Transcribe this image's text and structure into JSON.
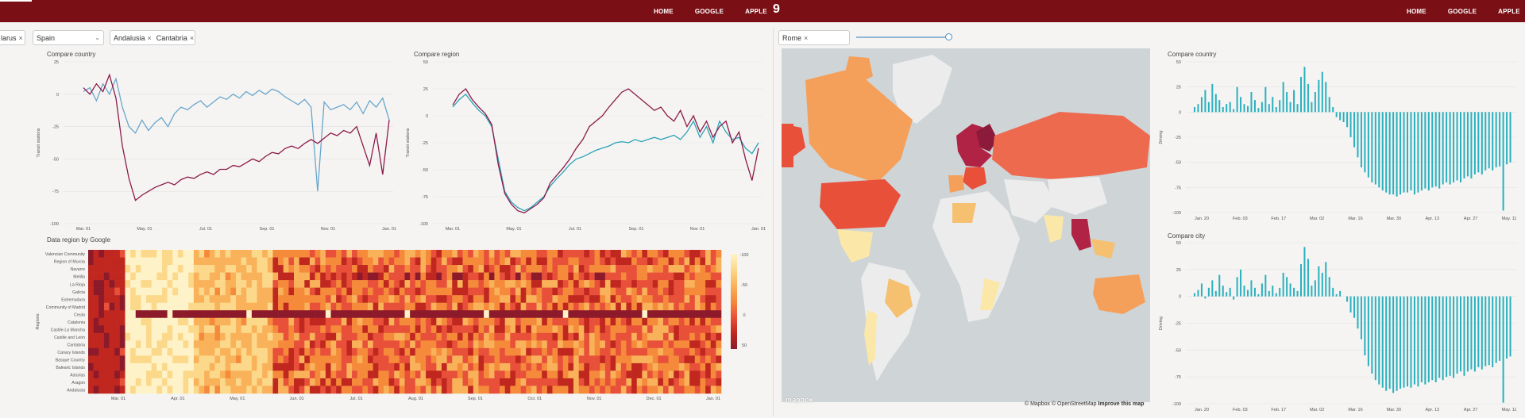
{
  "header": {
    "nav_left": [
      "HOME",
      "GOOGLE",
      "APPLE"
    ],
    "logo": "9",
    "nav_right": [
      "HOME",
      "GOOGLE",
      "APPLE"
    ]
  },
  "filters_left": {
    "country_chip": "larus",
    "country_select": "Spain",
    "region_chips": [
      "Andalusia",
      "Cantabria"
    ]
  },
  "filters_right": {
    "city_chip": "Rome"
  },
  "map": {
    "attribution_prefix": "© Mapbox © OpenStreetMap",
    "attribution_link": "Improve this map",
    "logo_text": "mapbox",
    "colors": {
      "ocean": "#cfd4d6",
      "high": "#8c1a3a",
      "mid": "#e8503a",
      "low": "#f5a05a",
      "faint": "#fbe8a8",
      "none": "#e8e8e8"
    }
  },
  "colors": {
    "series_a": "#6aa6cc",
    "series_b": "#8c1a4a",
    "series_c": "#2aa3b8",
    "bars": "#2ab0bf"
  },
  "chart_data": [
    {
      "id": "compare-country-left",
      "type": "line",
      "title": "Compare country",
      "ylabel": "Transit stations",
      "ylim": [
        -100,
        25
      ],
      "yticks": [
        25,
        0,
        -25,
        -50,
        -75,
        -100
      ],
      "xticks": [
        "Mar. 01",
        "May. 01",
        "Jul. 01",
        "Sep. 01",
        "Nov. 01",
        "Jan. 01"
      ],
      "series": [
        {
          "values": [
            2,
            5,
            -5,
            8,
            0,
            12,
            -10,
            -25,
            -30,
            -20,
            -28,
            -22,
            -18,
            -25,
            -15,
            -10,
            -12,
            -8,
            -5,
            -10,
            -6,
            -2,
            -4,
            0,
            -3,
            2,
            -1,
            3,
            0,
            4,
            2,
            -2,
            -5,
            -8,
            -4,
            -10,
            -75,
            -6,
            -12,
            -10,
            -8,
            -12,
            -6,
            -15,
            -5,
            -10,
            -3,
            -20
          ]
        },
        {
          "values": [
            5,
            0,
            8,
            2,
            15,
            -3,
            -40,
            -65,
            -82,
            -78,
            -75,
            -72,
            -70,
            -68,
            -70,
            -66,
            -64,
            -65,
            -62,
            -60,
            -62,
            -58,
            -58,
            -55,
            -56,
            -53,
            -50,
            -52,
            -48,
            -45,
            -46,
            -42,
            -40,
            -42,
            -38,
            -35,
            -38,
            -34,
            -30,
            -32,
            -28,
            -30,
            -25,
            -40,
            -55,
            -30,
            -62,
            -20
          ]
        }
      ]
    },
    {
      "id": "compare-region",
      "type": "line",
      "title": "Compare region",
      "ylabel": "Transit stations",
      "ylim": [
        -100,
        50
      ],
      "yticks": [
        50,
        25,
        0,
        -25,
        -50,
        -75,
        -100
      ],
      "xticks": [
        "Mar. 01",
        "May. 01",
        "Jul. 01",
        "Sep. 01",
        "Nov. 01",
        "Jan. 01"
      ],
      "series": [
        {
          "values": [
            8,
            15,
            20,
            12,
            5,
            0,
            -10,
            -40,
            -70,
            -80,
            -85,
            -88,
            -85,
            -80,
            -75,
            -65,
            -58,
            -52,
            -45,
            -40,
            -38,
            -35,
            -32,
            -30,
            -28,
            -25,
            -24,
            -25,
            -22,
            -24,
            -22,
            -20,
            -22,
            -20,
            -18,
            -22,
            -15,
            -5,
            -20,
            -10,
            -25,
            -5,
            -15,
            -22,
            -20,
            -30,
            -35,
            -25
          ]
        },
        {
          "values": [
            10,
            20,
            25,
            15,
            8,
            2,
            -8,
            -45,
            -72,
            -82,
            -88,
            -90,
            -86,
            -82,
            -76,
            -62,
            -55,
            -48,
            -40,
            -30,
            -22,
            -10,
            -5,
            0,
            8,
            15,
            22,
            25,
            20,
            15,
            10,
            5,
            8,
            0,
            -5,
            5,
            -10,
            0,
            -15,
            -5,
            -20,
            -10,
            -5,
            -25,
            -15,
            -40,
            -60,
            -30
          ]
        }
      ]
    },
    {
      "id": "data-region-heatmap",
      "type": "heatmap",
      "title": "Data region by Google",
      "ylabel": "Regions",
      "rows": [
        "Valencian Community",
        "Region of Murcia",
        "Navarre",
        "Melilla",
        "La Rioja",
        "Galicia",
        "Extremadura",
        "Community of Madrid",
        "Ceuta",
        "Catalonia",
        "Castile-La Mancha",
        "Castile and León",
        "Cantabria",
        "Canary Islands",
        "Basque Country",
        "Balearic Islands",
        "Asturias",
        "Aragon",
        "Andalusia"
      ],
      "xticks": [
        "Mar. 01",
        "Apr. 01",
        "May. 01",
        "Jun. 01",
        "Jul. 01",
        "Aug. 01",
        "Sep. 01",
        "Oct. 01",
        "Nov. 01",
        "Dec. 01",
        "Jan. 01"
      ],
      "scale_ticks": [
        "-100",
        "-50",
        "0",
        "50"
      ]
    },
    {
      "id": "compare-country-right",
      "type": "bar",
      "title": "Compare country",
      "ylabel": "Driving",
      "ylim": [
        -100,
        50
      ],
      "yticks": [
        50,
        25,
        0,
        -25,
        -50,
        -75,
        -100
      ],
      "xticks": [
        "Jan. 20",
        "Feb. 03",
        "Feb. 17",
        "Mar. 02",
        "Mar. 16",
        "Mar. 30",
        "Apr. 13",
        "Apr. 27",
        "May. 11"
      ],
      "values": [
        5,
        8,
        15,
        22,
        10,
        28,
        18,
        12,
        5,
        8,
        10,
        3,
        25,
        15,
        8,
        6,
        20,
        12,
        4,
        10,
        25,
        8,
        15,
        5,
        12,
        30,
        20,
        10,
        22,
        8,
        35,
        45,
        28,
        10,
        20,
        32,
        40,
        30,
        15,
        5,
        -5,
        -8,
        -10,
        -15,
        -25,
        -35,
        -45,
        -55,
        -60,
        -65,
        -70,
        -72,
        -75,
        -78,
        -80,
        -82,
        -82,
        -84,
        -82,
        -80,
        -80,
        -78,
        -82,
        -80,
        -78,
        -76,
        -78,
        -75,
        -74,
        -76,
        -72,
        -70,
        -72,
        -70,
        -68,
        -70,
        -66,
        -64,
        -66,
        -62,
        -60,
        -62,
        -58,
        -56,
        -58,
        -55,
        -54,
        -98,
        -52,
        -50
      ]
    },
    {
      "id": "compare-city",
      "type": "bar",
      "title": "Compare city",
      "ylabel": "Driving",
      "ylim": [
        -100,
        50
      ],
      "yticks": [
        50,
        25,
        0,
        -25,
        -50,
        -75,
        -100
      ],
      "xticks": [
        "Jan. 20",
        "Feb. 03",
        "Feb. 17",
        "Mar. 02",
        "Mar. 16",
        "Mar. 30",
        "Apr. 13",
        "Apr. 27",
        "May. 11"
      ],
      "values": [
        3,
        6,
        12,
        -2,
        8,
        15,
        5,
        20,
        10,
        4,
        8,
        -3,
        18,
        25,
        10,
        6,
        15,
        8,
        2,
        12,
        20,
        5,
        10,
        3,
        8,
        22,
        18,
        12,
        8,
        5,
        30,
        46,
        35,
        10,
        15,
        28,
        22,
        32,
        18,
        8,
        2,
        5,
        0,
        -5,
        -15,
        -20,
        -30,
        -40,
        -55,
        -65,
        -72,
        -78,
        -82,
        -85,
        -88,
        -86,
        -90,
        -88,
        -86,
        -85,
        -84,
        -85,
        -82,
        -84,
        -80,
        -82,
        -80,
        -78,
        -80,
        -76,
        -78,
        -75,
        -74,
        -76,
        -72,
        -70,
        -74,
        -70,
        -68,
        -70,
        -66,
        -68,
        -65,
        -64,
        -66,
        -62,
        -60,
        -99,
        -58,
        -56
      ]
    }
  ]
}
